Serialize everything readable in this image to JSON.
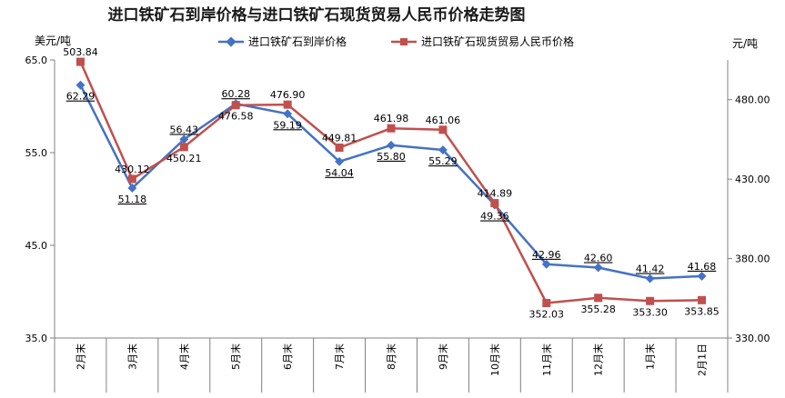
{
  "chart_data": {
    "type": "line",
    "title": "进口铁矿石到岸价格与进口铁矿石现货贸易人民币价格走势图",
    "left_unit": "美元/吨",
    "right_unit": "元/吨",
    "categories": [
      "2月末",
      "3月末",
      "4月末",
      "5月末",
      "6月末",
      "7月末",
      "8月末",
      "9月末",
      "10月末",
      "11月末",
      "12月末",
      "1月末",
      "2月1日"
    ],
    "series": [
      {
        "name": "进口铁矿石到岸价格",
        "axis": "left",
        "color": "#4472C4",
        "marker": "diamond",
        "values": [
          62.29,
          51.18,
          56.43,
          60.28,
          59.19,
          54.04,
          55.8,
          55.29,
          49.36,
          42.96,
          42.6,
          41.42,
          41.68
        ],
        "labels": [
          "62.29",
          "51.18",
          "56.43",
          "60.28",
          "59.19",
          "54.04",
          "55.80",
          "55.29",
          "49.36",
          "42.96",
          "42.60",
          "41.42",
          "41.68"
        ]
      },
      {
        "name": "进口铁矿石现货贸易人民币价格",
        "axis": "right",
        "color": "#C0504D",
        "marker": "square",
        "values": [
          503.84,
          430.12,
          450.21,
          476.58,
          476.9,
          449.81,
          461.98,
          461.06,
          414.89,
          352.03,
          355.28,
          353.3,
          353.85
        ],
        "labels": [
          "503.84",
          "430.12",
          "450.21",
          "476.58",
          "476.90",
          "449.81",
          "461.98",
          "461.06",
          "414.89",
          "352.03",
          "355.28",
          "353.30",
          "353.85"
        ]
      }
    ],
    "y_left": {
      "min": 35,
      "max": 65,
      "ticks": [
        "35.0",
        "45.0",
        "55.0",
        "65.0"
      ]
    },
    "y_right": {
      "min": 330,
      "max": 505,
      "ticks": [
        "330.00",
        "380.00",
        "430.00",
        "480.00"
      ]
    },
    "legend_position": "top",
    "grid": false
  }
}
